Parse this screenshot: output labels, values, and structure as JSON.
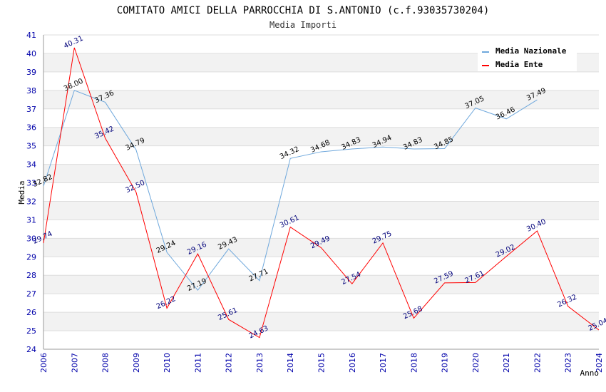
{
  "chart_data": {
    "type": "line",
    "title": "COMITATO AMICI DELLA PARROCCHIA DI S.ANTONIO (c.f.93035730204)",
    "subtitle": "Media Importi",
    "xlabel": "Anno",
    "ylabel": "Media",
    "ylim": [
      24,
      41
    ],
    "yticks": [
      "24",
      "25",
      "26",
      "27",
      "28",
      "29",
      "30",
      "31",
      "32",
      "33",
      "34",
      "35",
      "36",
      "37",
      "38",
      "39",
      "40",
      "41"
    ],
    "categories": [
      "2006",
      "2007",
      "2008",
      "2009",
      "2010",
      "2011",
      "2012",
      "2013",
      "2014",
      "2015",
      "2016",
      "2017",
      "2018",
      "2019",
      "2020",
      "2021",
      "2022",
      "2023",
      "2024"
    ],
    "grid": true,
    "legend_position": "top-right",
    "series": [
      {
        "name": "Media Nazionale",
        "color": "#6fa8dc",
        "label_color": "#000000",
        "values": [
          32.82,
          38.0,
          37.36,
          34.79,
          29.24,
          27.19,
          29.43,
          27.71,
          34.32,
          34.68,
          34.83,
          34.94,
          34.83,
          34.85,
          37.05,
          36.46,
          37.49,
          null,
          null
        ],
        "labels": [
          "32.82",
          "38.00",
          "37.36",
          "34.79",
          "29.24",
          "27.19",
          "29.43",
          "27.71",
          "34.32",
          "34.68",
          "34.83",
          "34.94",
          "34.83",
          "34.85",
          "37.05",
          "36.46",
          "37.49",
          null,
          null
        ]
      },
      {
        "name": "Media Ente",
        "color": "#ff0000",
        "label_color": "#00007a",
        "values": [
          29.74,
          40.31,
          35.42,
          32.5,
          26.22,
          29.16,
          25.61,
          24.63,
          30.61,
          29.49,
          27.54,
          29.75,
          25.68,
          27.59,
          27.61,
          29.02,
          30.4,
          26.32,
          25.04
        ],
        "labels": [
          "29.74",
          "40.31",
          "35.42",
          "32.50",
          "26.22",
          "29.16",
          "25.61",
          "24.63",
          "30.61",
          "29.49",
          "27.54",
          "29.75",
          "25.68",
          "27.59",
          "27.61",
          "29.02",
          "30.40",
          "26.32",
          "25.04"
        ]
      }
    ]
  }
}
